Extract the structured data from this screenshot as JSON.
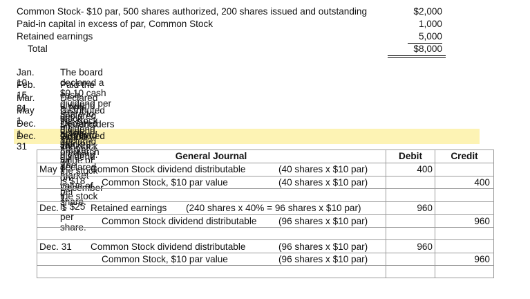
{
  "equity": {
    "rows": [
      {
        "label": "Common Stock- $10 par, 500 shares authorized, 200 shares issued and outstanding",
        "amount": "$2,000"
      },
      {
        "label": "Paid-in capital in excess of par, Common Stock",
        "amount": "1,000"
      },
      {
        "label": "Retained earnings",
        "amount": "5,000"
      }
    ],
    "total": {
      "label": "Total",
      "amount": "$8,000"
    }
  },
  "transactions": [
    {
      "date": "Jan. 10",
      "text": "The board declared a $0.10 cash dividend per share to shareholders of record Jan. 28."
    },
    {
      "date": "Feb. 15",
      "text": "Paid the cash dividend declared on January 10."
    },
    {
      "date": "Mar. 31",
      "text": "Declared a 20% stock dividend. The market value of the stock is $18 per share."
    },
    {
      "date": "May 1",
      "text": "Distributed the stock dividend declared on March 31."
    },
    {
      "date": "Dec. 1",
      "text": "Declared a 40% stock dividend. The market value of the stock is $25 per share."
    },
    {
      "date": "Dec. 31",
      "text": "Distributed the stock dividend declared on December 1."
    }
  ],
  "journal": {
    "title": "General Journal",
    "debit_header": "Debit",
    "credit_header": "Credit",
    "entries": [
      {
        "date": "May 1",
        "debit_account": "Common Stock dividend distributable",
        "debit_note": "(40 shares x $10 par)",
        "debit_amount": "400",
        "credit_account": "Common Stock, $10 par value",
        "credit_note": "(40 shares x $10 par)",
        "credit_amount": "400"
      },
      {
        "date": "Dec. 1",
        "debit_account": "Retained earnings",
        "debit_note": "(240 shares x 40% = 96 shares x $10 par)",
        "debit_amount": "960",
        "credit_account": "Common Stock dividend distributable",
        "credit_note": "(96 shares x $10 par)",
        "credit_amount": "960"
      },
      {
        "date": "Dec. 31",
        "debit_account": "Common Stock dividend distributable",
        "debit_note": "(96 shares x $10 par)",
        "debit_amount": "960",
        "credit_account": "Common Stock, $10 par value",
        "credit_note": "(96 shares x $10 par)",
        "credit_amount": "960"
      }
    ]
  }
}
